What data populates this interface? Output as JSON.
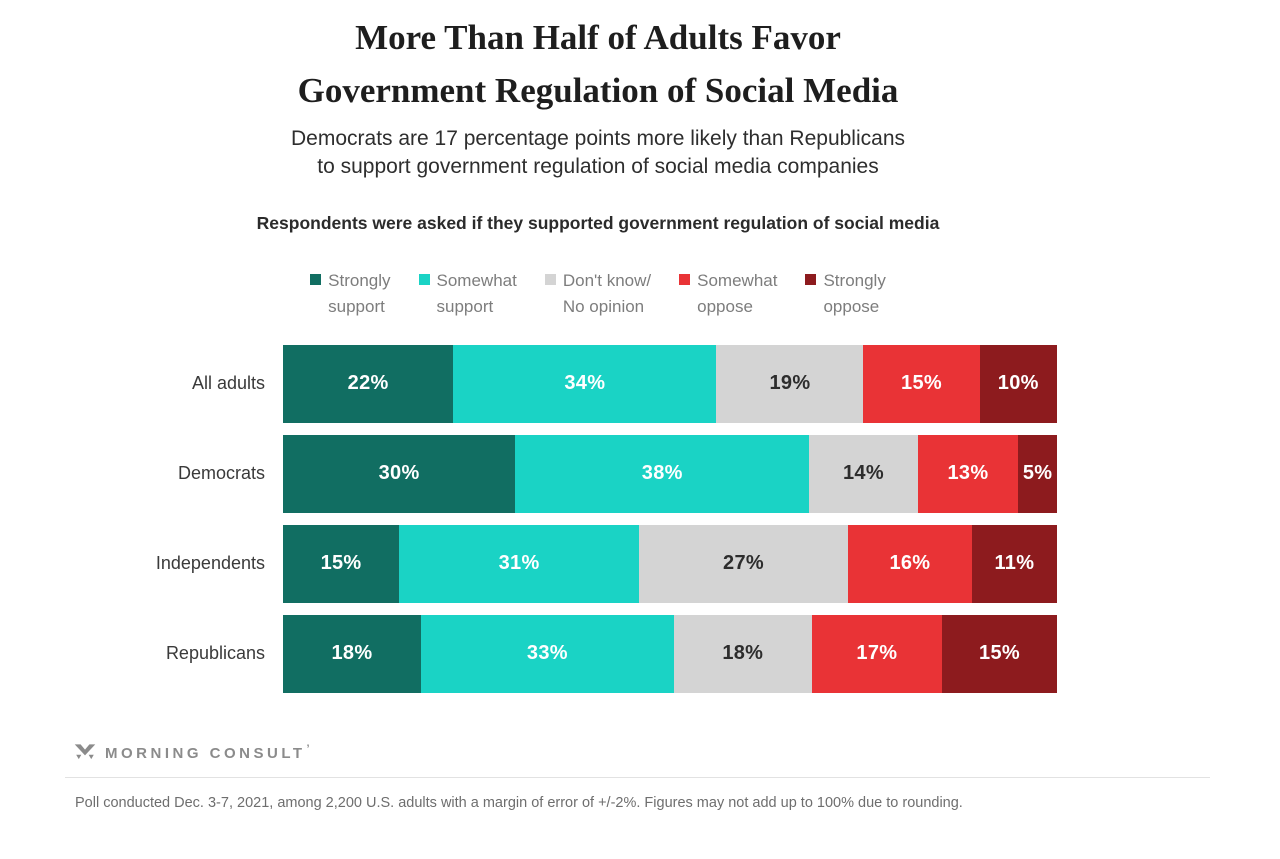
{
  "header": {
    "title": "More Than Half of Adults Favor\nGovernment Regulation of Social Media",
    "subtitle": "Democrats are 17 percentage points more likely than Republicans\nto support government regulation of social media companies",
    "question": "Respondents were asked if they supported government regulation of social media"
  },
  "chart_data": {
    "type": "bar",
    "orientation": "horizontal",
    "stacked": true,
    "grid": false,
    "legend_position": "top",
    "xlim": [
      0,
      100
    ],
    "value_suffix": "%",
    "categories": [
      "All adults",
      "Democrats",
      "Independents",
      "Republicans"
    ],
    "series": [
      {
        "name": "Strongly support",
        "legend_label": "Strongly\nsupport",
        "color": "#116e62",
        "text_color": "#ffffff",
        "values": [
          22,
          30,
          15,
          18
        ]
      },
      {
        "name": "Somewhat support",
        "legend_label": "Somewhat\nsupport",
        "color": "#1ad3c5",
        "text_color": "#ffffff",
        "values": [
          34,
          38,
          31,
          33
        ]
      },
      {
        "name": "Don't know/No opinion",
        "legend_label": "Don't know/\nNo opinion",
        "color": "#d4d4d4",
        "text_color": "#2d2d2d",
        "values": [
          19,
          14,
          27,
          18
        ]
      },
      {
        "name": "Somewhat oppose",
        "legend_label": "Somewhat\noppose",
        "color": "#e93336",
        "text_color": "#ffffff",
        "values": [
          15,
          13,
          16,
          17
        ]
      },
      {
        "name": "Strongly oppose",
        "legend_label": "Strongly\noppose",
        "color": "#8d1b1e",
        "text_color": "#ffffff",
        "values": [
          10,
          5,
          11,
          15
        ]
      }
    ]
  },
  "footer": {
    "logo_text": "MORNING CONSULT",
    "logo_tick": "’",
    "footnote": "Poll conducted Dec. 3-7, 2021, among 2,200 U.S. adults with a margin of error of +/-2%. Figures may not add up to 100% due to rounding."
  }
}
